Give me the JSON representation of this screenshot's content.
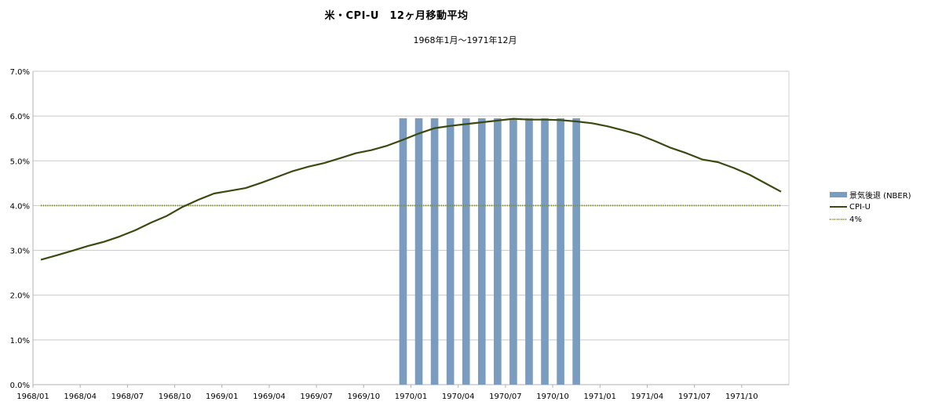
{
  "chart_data": {
    "type": "bar+line",
    "title": "米・CPI-U　12ヶ月移動平均",
    "subtitle": "1968年1月～1971年12月",
    "y_ticks": [
      "0.0%",
      "1.0%",
      "2.0%",
      "3.0%",
      "4.0%",
      "5.0%",
      "6.0%",
      "7.0%"
    ],
    "ylim": [
      0,
      7
    ],
    "x_ticks": [
      "1968/01",
      "1968/04",
      "1968/07",
      "1968/10",
      "1969/01",
      "1969/04",
      "1969/07",
      "1969/10",
      "1970/01",
      "1970/04",
      "1970/07",
      "1970/10",
      "1971/01",
      "1971/04",
      "1971/07",
      "1971/10"
    ],
    "months": [
      "1968/01",
      "1968/02",
      "1968/03",
      "1968/04",
      "1968/05",
      "1968/06",
      "1968/07",
      "1968/08",
      "1968/09",
      "1968/10",
      "1968/11",
      "1968/12",
      "1969/01",
      "1969/02",
      "1969/03",
      "1969/04",
      "1969/05",
      "1969/06",
      "1969/07",
      "1969/08",
      "1969/09",
      "1969/10",
      "1969/11",
      "1969/12",
      "1970/01",
      "1970/02",
      "1970/03",
      "1970/04",
      "1970/05",
      "1970/06",
      "1970/07",
      "1970/08",
      "1970/09",
      "1970/10",
      "1970/11",
      "1970/12",
      "1971/01",
      "1971/02",
      "1971/03",
      "1971/04",
      "1971/05",
      "1971/06",
      "1971/07",
      "1971/08",
      "1971/09",
      "1971/10",
      "1971/11",
      "1971/12"
    ],
    "series": [
      {
        "name": "景気後退 (NBER)",
        "type": "bar",
        "color": "#7a9cc0",
        "values": [
          0,
          0,
          0,
          0,
          0,
          0,
          0,
          0,
          0,
          0,
          0,
          0,
          0,
          0,
          0,
          0,
          0,
          0,
          0,
          0,
          0,
          0,
          0,
          5.95,
          5.95,
          5.95,
          5.95,
          5.95,
          5.95,
          5.95,
          5.95,
          5.95,
          5.95,
          5.95,
          5.95,
          0,
          0,
          0,
          0,
          0,
          0,
          0,
          0,
          0,
          0,
          0,
          0,
          0
        ]
      },
      {
        "name": "CPI-U",
        "type": "line",
        "color": "#3b4a10",
        "values": [
          2.79,
          2.89,
          2.99,
          3.1,
          3.19,
          3.31,
          3.45,
          3.62,
          3.77,
          3.97,
          4.13,
          4.27,
          4.33,
          4.39,
          4.51,
          4.64,
          4.77,
          4.87,
          4.95,
          5.06,
          5.17,
          5.24,
          5.34,
          5.47,
          5.61,
          5.73,
          5.78,
          5.82,
          5.86,
          5.9,
          5.94,
          5.92,
          5.92,
          5.91,
          5.88,
          5.84,
          5.77,
          5.68,
          5.58,
          5.44,
          5.29,
          5.17,
          5.03,
          4.97,
          4.84,
          4.69,
          4.5,
          4.31
        ]
      },
      {
        "name": "4%",
        "type": "line",
        "style": "dotted",
        "color": "#7a8a1a",
        "value": 4.0
      }
    ]
  }
}
